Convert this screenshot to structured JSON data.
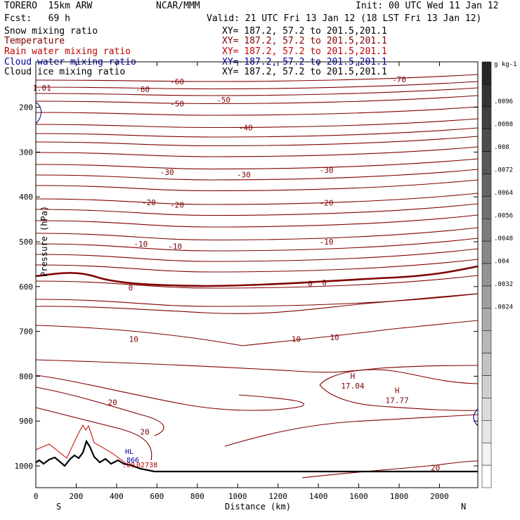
{
  "header": {
    "model": "TORERO  15km ARW",
    "center": "NCAR/MMM",
    "init": "Init: 00 UTC Wed 11 Jan 12",
    "fcst": "Fcst:   69 h",
    "valid": "Valid: 21 UTC Fri 13 Jan 12 (18 LST Fri 13 Jan 12)"
  },
  "fields": [
    {
      "name": "Snow mixing ratio",
      "xy": "XY= 187.2, 57.2 to 201.5,201.1",
      "color": "#000000"
    },
    {
      "name": "Temperature",
      "xy": "XY= 187.2, 57.2 to 201.5,201.1",
      "color": "#800000"
    },
    {
      "name": "Rain water mixing ratio",
      "xy": "XY= 187.2, 57.2 to 201.5,201.1",
      "color": "#c00000"
    },
    {
      "name": "Cloud water mixing ratio",
      "xy": "XY= 187.2, 57.2 to 201.5,201.1",
      "color": "#0000a0"
    },
    {
      "name": "Cloud ice mixing ratio",
      "xy": "XY= 187.2, 57.2 to 201.5,201.1",
      "color": "#000000"
    }
  ],
  "chart_data": {
    "type": "contour-cross-section",
    "xlabel": "Distance (km)",
    "ylabel": "Pressure (hPa)",
    "xlim": [
      0,
      2190
    ],
    "ylim_hPa": [
      1050,
      115
    ],
    "x_ticks": [
      0,
      200,
      400,
      600,
      800,
      1000,
      1200,
      1400,
      1600,
      1800,
      2000
    ],
    "y_ticks": [
      200,
      300,
      400,
      500,
      600,
      700,
      800,
      900,
      1000
    ],
    "left_end": "S",
    "right_end": "N",
    "isotherm_labels": [
      {
        "text": "-70",
        "x": 1800,
        "p": 138
      },
      {
        "text": "-60",
        "x": 530,
        "p": 160
      },
      {
        "text": "-60",
        "x": 700,
        "p": 143
      },
      {
        "text": "-50",
        "x": 700,
        "p": 192
      },
      {
        "text": "-50",
        "x": 930,
        "p": 183
      },
      {
        "text": "-40",
        "x": 1040,
        "p": 245
      },
      {
        "text": "-30",
        "x": 650,
        "p": 345
      },
      {
        "text": "-30",
        "x": 1030,
        "p": 350
      },
      {
        "text": "-30",
        "x": 1440,
        "p": 340
      },
      {
        "text": "-20",
        "x": 560,
        "p": 412
      },
      {
        "text": "-20",
        "x": 700,
        "p": 418
      },
      {
        "text": "-20",
        "x": 1440,
        "p": 413
      },
      {
        "text": "-10",
        "x": 520,
        "p": 505
      },
      {
        "text": "-10",
        "x": 690,
        "p": 510
      },
      {
        "text": "-10",
        "x": 1440,
        "p": 500
      },
      {
        "text": "0",
        "x": 470,
        "p": 603
      },
      {
        "text": "0",
        "x": 1360,
        "p": 593
      },
      {
        "text": "0",
        "x": 1430,
        "p": 591
      },
      {
        "text": "10",
        "x": 485,
        "p": 717
      },
      {
        "text": "10",
        "x": 1290,
        "p": 717
      },
      {
        "text": "10",
        "x": 1480,
        "p": 713
      },
      {
        "text": "20",
        "x": 380,
        "p": 858
      },
      {
        "text": "20",
        "x": 540,
        "p": 924
      },
      {
        "text": "20",
        "x": 1980,
        "p": 1004
      },
      {
        "text": "1.01",
        "x": 30,
        "p": 157
      }
    ],
    "extrema": [
      {
        "kind": "H",
        "value": "17.04",
        "x": 1570,
        "p": 815
      },
      {
        "kind": "H",
        "value": "17.77",
        "x": 1790,
        "p": 847
      }
    ],
    "surface_annotations": {
      "cloud_water": "HL",
      "rain_a": ".00",
      "rain_b": ".02738",
      "cloud_water_value": "866"
    },
    "colorbar": {
      "unit": "g kg-1",
      "ticks": [
        ".0096",
        ".0088",
        ".008",
        ".0072",
        ".0064",
        ".0056",
        ".0048",
        ".004",
        ".0032",
        ".0024"
      ]
    }
  }
}
